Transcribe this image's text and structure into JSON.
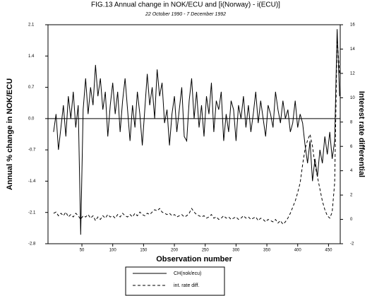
{
  "chart_data": {
    "type": "line",
    "title": "FIG.13 Annual change in NOK/ECU and [i(Norway) - i(ECU)]",
    "subtitle": "22 October 1990 - 7 December 1992",
    "x_label": "Observation number",
    "y_label": "Annual % change in  NOK/ECU",
    "y2_label": "Interest rate differential",
    "xlim": [
      -5,
      469
    ],
    "xticks": [
      50,
      100,
      150,
      200,
      250,
      300,
      350,
      400,
      450
    ],
    "ylim": [
      -2.8,
      2.1
    ],
    "yticks": [
      2.1,
      1.4,
      0.7,
      {
        "value": 0,
        "label": "0.0"
      },
      -0.7,
      -1.4,
      -2.1,
      -2.8
    ],
    "y2lim": [
      -2,
      16
    ],
    "y2ticks": [
      16,
      14,
      12,
      10,
      8,
      6,
      4,
      2,
      0,
      -2
    ],
    "x": [
      4,
      8,
      12,
      16,
      20,
      24,
      28,
      32,
      36,
      40,
      44,
      48,
      52,
      56,
      60,
      64,
      68,
      72,
      76,
      80,
      84,
      88,
      92,
      96,
      100,
      104,
      108,
      112,
      116,
      120,
      124,
      128,
      132,
      136,
      140,
      144,
      148,
      152,
      156,
      160,
      164,
      168,
      172,
      176,
      180,
      184,
      188,
      192,
      196,
      200,
      204,
      208,
      212,
      216,
      220,
      224,
      228,
      232,
      236,
      240,
      244,
      248,
      252,
      256,
      260,
      264,
      268,
      272,
      276,
      280,
      284,
      288,
      292,
      296,
      300,
      304,
      308,
      312,
      316,
      320,
      324,
      328,
      332,
      336,
      340,
      344,
      348,
      352,
      356,
      360,
      364,
      368,
      372,
      376,
      380,
      384,
      388,
      392,
      396,
      400,
      404,
      408,
      412,
      416,
      420,
      424,
      428,
      432,
      436,
      440,
      444,
      448,
      452,
      456,
      460,
      464,
      468
    ],
    "series": [
      {
        "name": "CH(nok/ecu)",
        "color": "#000000",
        "dash": "none",
        "values": [
          -0.3,
          0.1,
          -0.7,
          -0.2,
          0.3,
          -0.4,
          0.5,
          0.0,
          0.6,
          -0.2,
          0.3,
          -2.6,
          0.2,
          0.9,
          0.1,
          0.7,
          0.3,
          1.2,
          0.5,
          0.9,
          0.2,
          0.6,
          -0.4,
          0.3,
          0.8,
          0.1,
          0.6,
          -0.3,
          0.4,
          0.9,
          0.2,
          -0.5,
          0.3,
          -0.2,
          0.6,
          0.1,
          -0.6,
          0.2,
          1.0,
          0.3,
          0.7,
          0.0,
          1.1,
          0.5,
          0.8,
          -0.1,
          0.2,
          -0.6,
          0.1,
          0.5,
          -0.3,
          0.2,
          0.7,
          -0.4,
          -0.5,
          0.4,
          0.9,
          0.0,
          0.6,
          -0.2,
          0.3,
          -0.4,
          0.5,
          0.1,
          0.8,
          -0.3,
          0.4,
          0.2,
          0.6,
          -0.5,
          0.1,
          -0.3,
          0.4,
          0.2,
          -0.5,
          0.3,
          0.0,
          0.5,
          -0.2,
          0.3,
          -0.3,
          0.1,
          0.6,
          -0.1,
          0.4,
          0.0,
          -0.4,
          0.3,
          0.1,
          -0.2,
          0.6,
          0.2,
          -0.1,
          0.4,
          0.0,
          0.2,
          -0.3,
          -0.1,
          0.4,
          -0.2,
          0.1,
          -0.1,
          -0.6,
          -1.0,
          -0.5,
          -1.4,
          -0.9,
          -1.3,
          -0.7,
          -1.0,
          -0.4,
          -0.8,
          -0.3,
          -0.9,
          -0.5,
          2.0,
          0.5
        ]
      },
      {
        "name": "int. rate diff.",
        "color": "#000000",
        "dash": "4,3",
        "axis": "y2",
        "values": [
          0.5,
          0.6,
          0.3,
          0.5,
          0.3,
          0.6,
          0.2,
          0.4,
          0.2,
          0.5,
          0.3,
          0.0,
          0.3,
          0.2,
          0.4,
          0.1,
          0.3,
          -0.1,
          0.2,
          0.0,
          0.3,
          0.1,
          0.4,
          0.2,
          0.3,
          0.1,
          0.4,
          0.2,
          0.5,
          0.3,
          0.2,
          0.4,
          0.2,
          0.5,
          0.3,
          0.6,
          0.4,
          0.3,
          0.5,
          0.4,
          0.6,
          0.8,
          0.7,
          0.9,
          0.6,
          0.5,
          0.4,
          0.5,
          0.3,
          0.4,
          0.2,
          0.3,
          0.4,
          0.2,
          0.3,
          0.5,
          0.9,
          0.6,
          0.4,
          0.3,
          0.2,
          0.3,
          0.1,
          0.2,
          0.4,
          0.1,
          0.2,
          0.0,
          0.1,
          0.3,
          0.1,
          0.2,
          0.0,
          0.1,
          0.2,
          0.0,
          0.1,
          0.3,
          0.1,
          0.2,
          0.0,
          0.1,
          0.2,
          -0.1,
          0.1,
          0.0,
          -0.2,
          0.0,
          -0.1,
          -0.2,
          0.0,
          -0.3,
          -0.1,
          -0.4,
          -0.2,
          0.1,
          0.5,
          1.0,
          1.5,
          2.2,
          3.0,
          4.5,
          5.8,
          6.5,
          7.0,
          6.0,
          4.5,
          3.5,
          2.5,
          1.5,
          0.8,
          0.3,
          0.1,
          0.6,
          3.0,
          15.0,
          12.0
        ]
      }
    ]
  }
}
